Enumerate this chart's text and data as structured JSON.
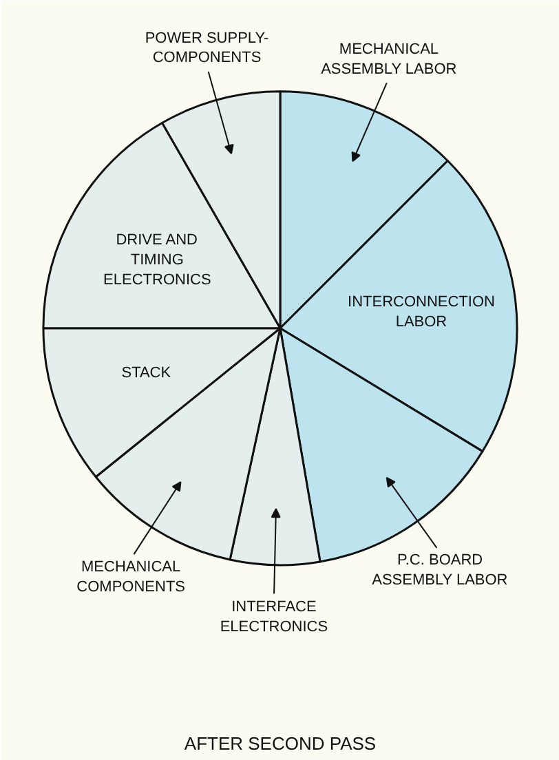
{
  "chart_data": {
    "type": "pie",
    "title": "AFTER SECOND PASS",
    "categories": [
      "MECHANICAL ASSEMBLY LABOR",
      "INTERCONNECTION LABOR",
      "P.C. BOARD ASSEMBLY LABOR",
      "INTERFACE ELECTRONICS",
      "MECHANICAL COMPONENTS",
      "STACK",
      "DRIVE AND TIMING ELECTRONICS",
      "POWER SUPPLY- COMPONENTS"
    ],
    "values": [
      12.5,
      21.2,
      13.6,
      6.1,
      10.8,
      10.8,
      16.7,
      8.3
    ],
    "colors": [
      "#bde3ee",
      "#bde3ee",
      "#bde3ee",
      "#e3eeed",
      "#e3eeed",
      "#e3eeed",
      "#e3eeed",
      "#e3eeed"
    ]
  }
}
